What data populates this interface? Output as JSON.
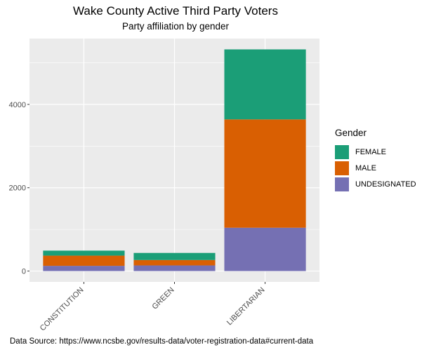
{
  "chart_data": {
    "type": "bar",
    "stacked": true,
    "title": "Wake County Active Third Party Voters",
    "subtitle": "Party affiliation by gender",
    "caption": "Data Source: https://www.ncsbe.gov/results-data/voter-registration-data#current-data",
    "xlabel": "",
    "ylabel": "",
    "categories": [
      "CONSTITUTION",
      "GREEN",
      "LIBERTARIAN"
    ],
    "series": [
      {
        "name": "UNDESIGNATED",
        "color": "#7570b3",
        "values": [
          125,
          135,
          1040
        ]
      },
      {
        "name": "MALE",
        "color": "#d95f02",
        "values": [
          245,
          130,
          2600
        ]
      },
      {
        "name": "FEMALE",
        "color": "#1b9e77",
        "values": [
          120,
          170,
          1680
        ]
      }
    ],
    "ylim": [
      -260,
      5580
    ],
    "yticks": [
      0,
      2000,
      4000
    ],
    "ytick_labels": [
      "0",
      "2000",
      "4000"
    ],
    "grid": true,
    "legend": {
      "title": "Gender",
      "position": "right",
      "items": [
        "FEMALE",
        "MALE",
        "UNDESIGNATED"
      ]
    },
    "colors": {
      "panel": "#ebebeb",
      "grid": "#ffffff",
      "tick_text": "#4d4d4d"
    }
  }
}
